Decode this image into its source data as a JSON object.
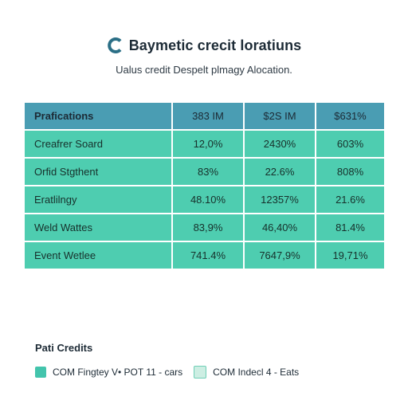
{
  "title": "Baymetic crecit loratiuns",
  "subtitle": "Ualus credit Despelt plmagy Alocation.",
  "colors": {
    "header": "#4a9db3",
    "row": "#4ecdb0",
    "logo": "#2b6f86",
    "legend_swatch_1": "#43c4ac",
    "legend_swatch_2": "#cdeee3"
  },
  "chart_data": {
    "type": "table",
    "columns": [
      "Prafications",
      "383 IM",
      "$2S IM",
      "$631%"
    ],
    "rows": [
      [
        "Creafrer Soard",
        "12,0%",
        "2430%",
        "603%"
      ],
      [
        "Orfid Stgthent",
        "83%",
        "22.6%",
        "808%"
      ],
      [
        "Eratlilngy",
        "48.10%",
        "12357%",
        "21.6%"
      ],
      [
        "Weld Wattes",
        "83,9%",
        "46,40%",
        "81.4%"
      ],
      [
        "Event Wetlee",
        "741.4%",
        "7647,9%",
        "19,71%"
      ]
    ]
  },
  "legend": {
    "title": "Pati Credits",
    "items": [
      {
        "label": "COM Fingtey V• POT 11 - cars",
        "color": "#43c4ac"
      },
      {
        "label": "COM Indecl 4 - Eats",
        "color": "#cdeee3"
      }
    ]
  }
}
